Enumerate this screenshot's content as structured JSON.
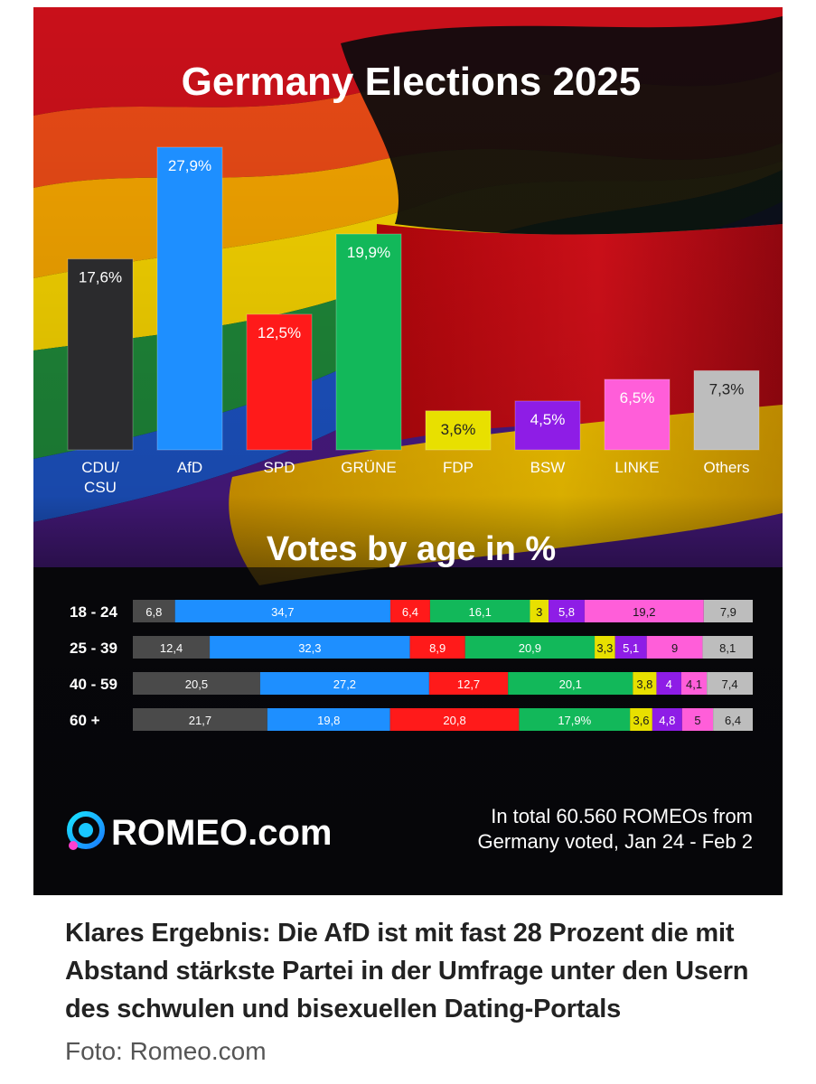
{
  "header": {
    "title": "Germany Elections 2025"
  },
  "chart_data": [
    {
      "type": "bar",
      "title": "Germany Elections 2025",
      "categories": [
        "CDU/\nCSU",
        "AfD",
        "SPD",
        "GRÜNE",
        "FDP",
        "BSW",
        "LINKE",
        "Others"
      ],
      "values": [
        17.6,
        27.9,
        12.5,
        19.9,
        3.6,
        4.5,
        6.5,
        7.3
      ],
      "value_labels": [
        "17,6%",
        "27,9%",
        "12,5%",
        "19,9%",
        "3,6%",
        "4,5%",
        "6,5%",
        "7,3%"
      ],
      "colors": [
        "#2b2b2d",
        "#1e8fff",
        "#ff1a1a",
        "#12b85a",
        "#e8e000",
        "#8e1de6",
        "#ff5ed9",
        "#bdbdbd"
      ],
      "xlabel": "",
      "ylabel": "",
      "grid": false
    },
    {
      "type": "bar",
      "orientation": "horizontal-stacked",
      "title": "Votes by age in %",
      "categories": [
        "18 - 24",
        "25 - 39",
        "40 - 59",
        "60 +"
      ],
      "series": [
        {
          "values": [
            6.8,
            12.4,
            20.5,
            21.7
          ],
          "labels": [
            "6,8",
            "12,4",
            "20,5",
            "21,7"
          ],
          "color": "#4a4a4a"
        },
        {
          "values": [
            34.7,
            32.3,
            27.2,
            19.8
          ],
          "labels": [
            "34,7",
            "32,3",
            "27,2",
            "19,8"
          ],
          "color": "#1e8fff"
        },
        {
          "values": [
            6.4,
            8.9,
            12.7,
            20.8
          ],
          "labels": [
            "6,4",
            "8,9",
            "12,7",
            "20,8"
          ],
          "color": "#ff1a1a"
        },
        {
          "values": [
            16.1,
            20.9,
            20.1,
            17.9
          ],
          "labels": [
            "16,1",
            "20,9",
            "20,1",
            "17,9%"
          ],
          "color": "#12b85a"
        },
        {
          "values": [
            3,
            3.3,
            3.8,
            3.6
          ],
          "labels": [
            "3",
            "3,3",
            "3,8",
            "3,6"
          ],
          "color": "#e8e000"
        },
        {
          "values": [
            5.8,
            5.1,
            4,
            4.8
          ],
          "labels": [
            "5,8",
            "5,1",
            "4",
            "4,8"
          ],
          "color": "#8e1de6"
        },
        {
          "values": [
            19.2,
            9,
            4.1,
            5
          ],
          "labels": [
            "19,2",
            "9",
            "4,1",
            "5"
          ],
          "color": "#ff5ed9"
        },
        {
          "values": [
            7.9,
            8.1,
            7.4,
            6.4
          ],
          "labels": [
            "7,9",
            "8,1",
            "7,4",
            "6,4"
          ],
          "color": "#bdbdbd"
        }
      ],
      "grid": false
    }
  ],
  "brand": {
    "name": "ROMEO.com",
    "accent": "#1da1f2",
    "logo_icon": "romeo-logo-icon"
  },
  "footnote": {
    "line1": "In total 60.560 ROMEOs from",
    "line2": "Germany voted, Jan 24 - Feb 2"
  },
  "caption": "Klares Ergebnis: Die AfD ist mit fast 28 Prozent die mit Abstand stärkste Partei in der Umfrage unter den Usern des schwulen und bisexuellen Dating-Portals",
  "credit": "Foto: Romeo.com"
}
